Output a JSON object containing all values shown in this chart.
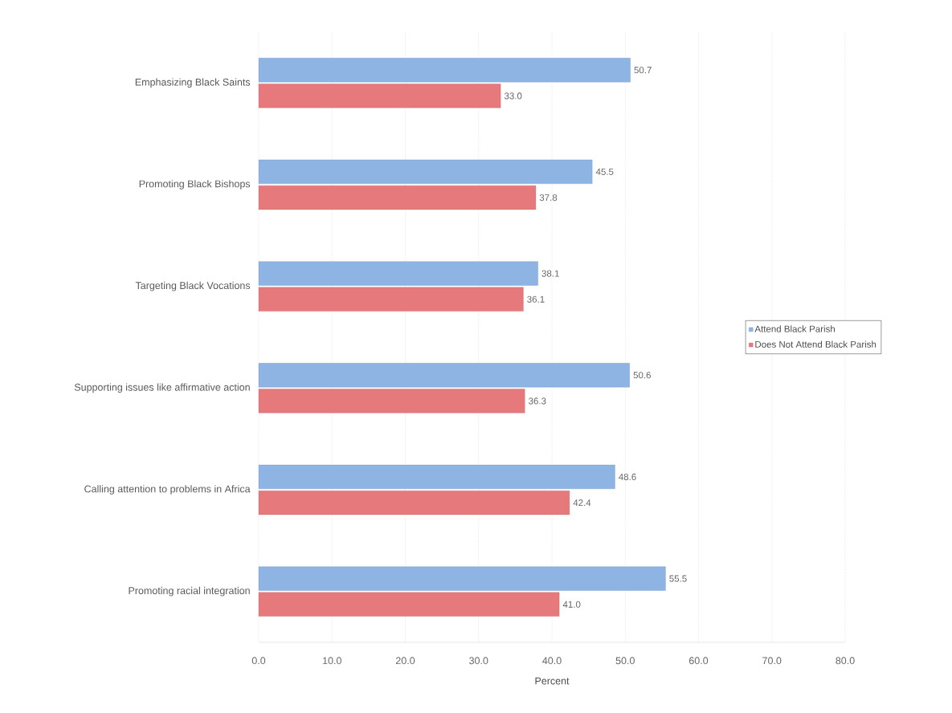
{
  "chart_data": {
    "type": "bar",
    "orientation": "horizontal",
    "xlabel": "Percent",
    "categories": [
      "Emphasizing Black Saints",
      "Promoting Black Bishops",
      "Targeting Black Vocations",
      "Supporting issues like affirmative action",
      "Calling attention to problems in Africa",
      "Promoting racial integration"
    ],
    "series": [
      {
        "name": "Attend Black Parish",
        "color": "#8eb4e3",
        "values": [
          50.7,
          45.5,
          38.1,
          50.6,
          48.6,
          55.5
        ],
        "value_labels": [
          "50.7",
          "45.5",
          "38.1",
          "50.6",
          "48.6",
          "55.5"
        ]
      },
      {
        "name": "Does Not Attend Black Parish",
        "color": "#e6797b",
        "values": [
          33.0,
          37.8,
          36.1,
          36.3,
          42.4,
          41.0
        ],
        "value_labels": [
          "33.0",
          "37.8",
          "36.1",
          "36.3",
          "42.4",
          "41.0"
        ]
      }
    ],
    "xlim": [
      0,
      80
    ],
    "xticks": [
      {
        "value": 0,
        "label": "0.0"
      },
      {
        "value": 10,
        "label": "10.0"
      },
      {
        "value": 20,
        "label": "20.0"
      },
      {
        "value": 30,
        "label": "30.0"
      },
      {
        "value": 40,
        "label": "40.0"
      },
      {
        "value": 50,
        "label": "50.0"
      },
      {
        "value": 60,
        "label": "60.0"
      },
      {
        "value": 70,
        "label": "70.0"
      },
      {
        "value": 80,
        "label": "80.0"
      }
    ],
    "grid": "x",
    "legend": "right"
  }
}
